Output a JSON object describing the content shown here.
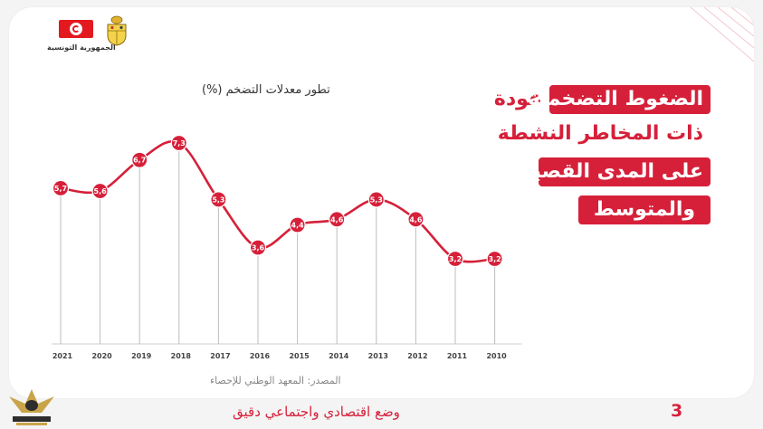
{
  "header": {
    "republic_name": "الجمهورية التونسية",
    "flag_colors": {
      "red": "#e3191f",
      "white": "#ffffff"
    }
  },
  "headline": {
    "lines": [
      {
        "text": "عودة الضغوط التضخمية",
        "style": "partial-highlight"
      },
      {
        "text": "ذات المخاطر النشطة",
        "style": "plain"
      },
      {
        "text": "على المدى القصير",
        "style": "highlight"
      },
      {
        "text": "والمتوسط",
        "style": "highlight"
      }
    ],
    "line1_plain": "عودة",
    "line1_highlight": "الضغوط التضخمية"
  },
  "footer": {
    "subtitle": "وضع اقتصادي واجتماعي دقيق",
    "page_number": "3",
    "source": "المصدر: المعهد الوطني للإحصاء"
  },
  "colors": {
    "accent": "#d6203a",
    "grid": "#bdbdbd",
    "text": "#333333"
  },
  "chart_data": {
    "type": "line",
    "title": "تطور معدلات التضخم (%)",
    "x": [
      "2021",
      "2020",
      "2019",
      "2018",
      "2017",
      "2016",
      "2015",
      "2014",
      "2013",
      "2012",
      "2011",
      "2010"
    ],
    "series": [
      {
        "values": [
          5.7,
          5.6,
          6.7,
          7.3,
          5.3,
          3.6,
          4.4,
          4.6,
          5.3,
          4.6,
          3.2,
          3.2
        ]
      }
    ],
    "data_labels": [
      "5,7",
      "5,6",
      "6,7",
      "7,3",
      "5,3",
      "3,6",
      "4,4",
      "4,6",
      "5,3",
      "4,6",
      "3,2",
      "3,2"
    ],
    "ylim": [
      0,
      8
    ],
    "grid": "vertical-lines",
    "legend": "none",
    "xlabel": "",
    "ylabel": ""
  }
}
